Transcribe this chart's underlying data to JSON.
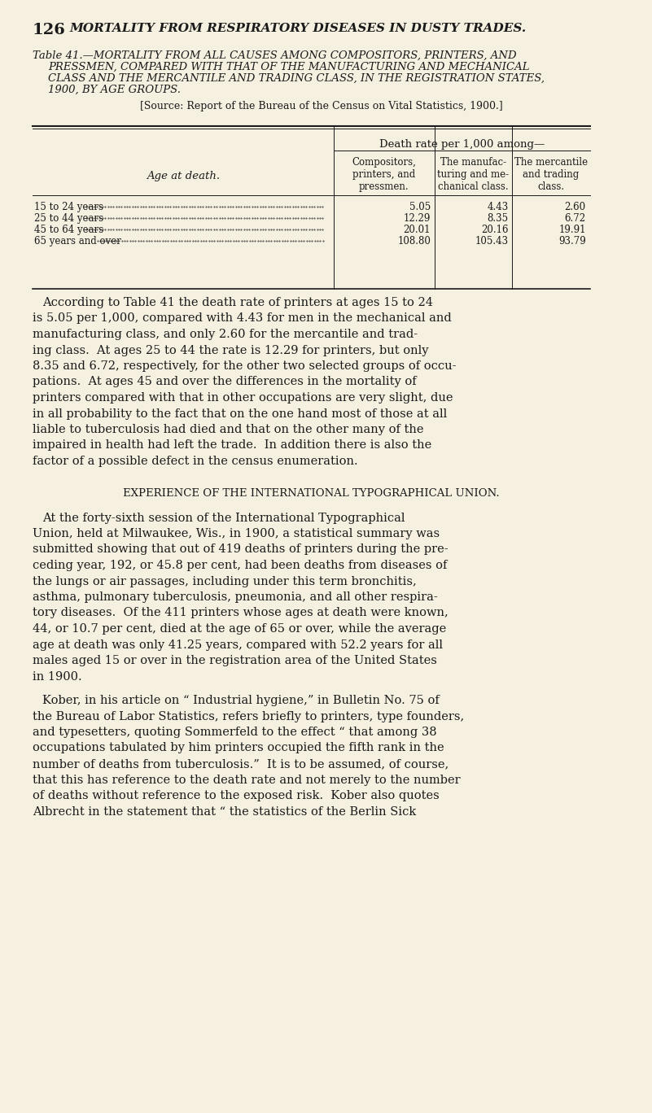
{
  "bg_color": "#f5f0e0",
  "page_num": "126",
  "page_header": "MORTALITY FROM RESPIRATORY DISEASES IN DUSTY TRADES.",
  "table_title_line1": "Table 41.—MORTALITY FROM ALL CAUSES AMONG COMPOSITORS, PRINTERS, AND",
  "table_title_line2": "PRESSMEN, COMPARED WITH THAT OF THE MANUFACTURING AND MECHANICAL",
  "table_title_line3": "CLASS AND THE MERCANTILE AND TRADING CLASS, IN THE REGISTRATION STATES,",
  "table_title_line4": "1900, BY AGE GROUPS.",
  "table_source": "[Source: Report of the Bureau of the Census on Vital Statistics, 1900.]",
  "col_header_main": "Death rate per 1,000 among—",
  "col_header_1": "Compositors,\nprinters, and\npressmen.",
  "col_header_2": "The manufac-\nturing and me-\nchanical class.",
  "col_header_3": "The mercantile\nand trading\nclass.",
  "row_label": "Age at death.",
  "ages": [
    "15 to 24 years",
    "25 to 44 years",
    "45 to 64 years",
    "65 years and over"
  ],
  "col1_vals": [
    "5.05",
    "12.29",
    "20.01",
    "108.80"
  ],
  "col2_vals": [
    "4.43",
    "8.35",
    "20.16",
    "105.43"
  ],
  "col3_vals": [
    "2.60",
    "6.72",
    "19.91",
    "93.79"
  ],
  "para1": "According to Table 41 the death rate of printers at ages 15 to 24 is 5.05 per 1,000, compared with 4.43 for men in the mechanical and manufacturing class, and only 2.60 for the mercantile and trad-ing class.  At ages 25 to 44 the rate is 12.29 for printers, but only 8.35 and 6.72, respectively, for the other two selected groups of occu-pations.  At ages 45 and over the differences in the mortality of printers compared with that in other occupations are very slight, due in all probability to the fact that on the one hand most of those at all liable to tuberculosis had died and that on the other many of the impaired in health had left the trade.  In addition there is also the factor of a possible defect in the census enumeration.",
  "section_header": "EXPERIENCE OF THE INTERNATIONAL TYPOGRAPHICAL UNION.",
  "para2": "At the forty-sixth session of the International Typographical Union, held at Milwaukee, Wis., in 1900, a statistical summary was submitted showing that out of 419 deaths of printers during the pre-ceding year, 192, or 45.8 per cent, had been deaths from diseases of the lungs or air passages, including under this term bronchitis, asthma, pulmonary tuberculosis, pneumonia, and all other respira-tory diseases.  Of the 411 printers whose ages at death were known, 44, or 10.7 per cent, died at the age of 65 or over, while the average age at death was only 41.25 years, compared with 52.2 years for all males aged 15 or over in the registration area of the United States in 1900.",
  "para3": "Kober, in his article on “ Industrial hygiene,” in Bulletin No. 75 of the Bureau of Labor Statistics, refers briefly to printers, type founders, and typesetters, quoting Sommerfeld to the effect “ that among 38 occupations tabulated by him printers occupied the fifth rank in the number of deaths from tuberculosis.”  It is to be assumed, of course, that this has reference to the death rate and not merely to the number of deaths without reference to the exposed risk.  Kober also quotes Albrecht in the statement that “ the statistics of the Berlin Sick"
}
